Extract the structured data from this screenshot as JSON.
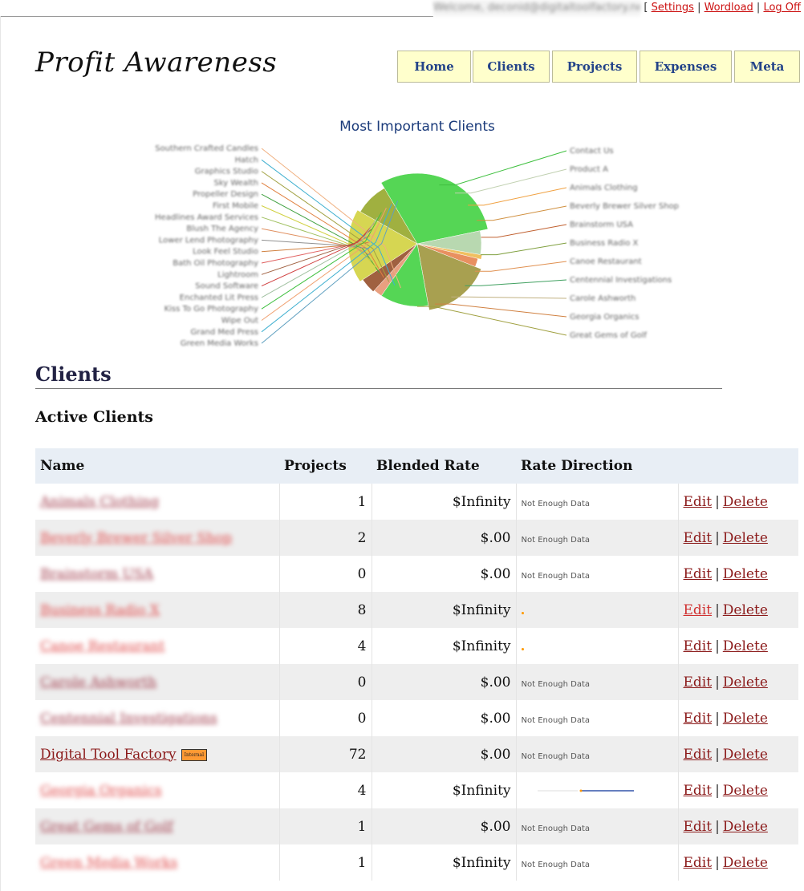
{
  "topbar": {
    "welcome": "Welcome, deconid@digitaltoolfactory.net",
    "open_bracket": "[ ",
    "settings": "Settings",
    "wordload": "Wordload",
    "logoff": "Log Off",
    "sep": " | "
  },
  "logo": "Profit Awareness",
  "nav": [
    {
      "label": "Home"
    },
    {
      "label": "Clients"
    },
    {
      "label": "Projects"
    },
    {
      "label": "Expenses"
    },
    {
      "label": "Meta"
    }
  ],
  "chart_data": {
    "type": "pie",
    "title": "Most Important Clients",
    "slice_colors": [
      "#55d655",
      "#b8d8b0",
      "#f0c060",
      "#e89060",
      "#a8a050",
      "#55d655",
      "#e8a080",
      "#a06040",
      "#d6d652",
      "#a0b040"
    ],
    "left_labels": [
      "Southern Crafted Candles",
      "Hatch",
      "Graphics Studio",
      "Sky Wealth",
      "Propeller Design",
      "First Mobile",
      "Headlines Award Services",
      "Blush The Agency",
      "Lower Lend Photography",
      "Look Feel Studio",
      "Bath Oil Photography",
      "Lightroom",
      "Sound Software",
      "Enchanted Lit Press",
      "Kiss To Go Photography",
      "Wipe Out",
      "Grand Med Press",
      "Green Media Works"
    ],
    "right_labels": [
      "Contact Us",
      "Product A",
      "Animals Clothing",
      "Beverly Brewer Silver Shop",
      "Brainstorm USA",
      "Business Radio X",
      "Canoe Restaurant",
      "Centennial Investigations",
      "Carole Ashworth",
      "Georgia Organics",
      "Great Gems of Golf"
    ]
  },
  "clients": {
    "heading": "Clients",
    "active_heading": "Active Clients",
    "columns": [
      "Name",
      "Projects",
      "Blended Rate",
      "Rate Direction",
      ""
    ],
    "edit_label": "Edit",
    "delete_label": "Delete",
    "action_sep": "|",
    "rows": [
      {
        "name": "Animals Clothing",
        "projects": "1",
        "rate": "$Infinity",
        "direction": "Not Enough Data",
        "dir_type": "text"
      },
      {
        "name": "Beverly Brewer Silver Shop",
        "projects": "2",
        "rate": "$.00",
        "direction": "Not Enough Data",
        "dir_type": "text"
      },
      {
        "name": "Brainstorm USA",
        "projects": "0",
        "rate": "$.00",
        "direction": "Not Enough Data",
        "dir_type": "text"
      },
      {
        "name": "Business Radio X",
        "projects": "8",
        "rate": "$Infinity",
        "direction": "",
        "dir_type": "dot"
      },
      {
        "name": "Canoe Restaurant",
        "projects": "4",
        "rate": "$Infinity",
        "direction": "",
        "dir_type": "dot"
      },
      {
        "name": "Carole Ashworth",
        "projects": "0",
        "rate": "$.00",
        "direction": "Not Enough Data",
        "dir_type": "text"
      },
      {
        "name": "Centennial Investigations",
        "projects": "0",
        "rate": "$.00",
        "direction": "Not Enough Data",
        "dir_type": "text"
      },
      {
        "name": "Digital Tool Factory",
        "projects": "72",
        "rate": "$.00",
        "direction": "Not Enough Data",
        "dir_type": "text",
        "badge": "Internal"
      },
      {
        "name": "Georgia Organics",
        "projects": "4",
        "rate": "$Infinity",
        "direction": "",
        "dir_type": "spark"
      },
      {
        "name": "Great Gems of Golf",
        "projects": "1",
        "rate": "$.00",
        "direction": "Not Enough Data",
        "dir_type": "text"
      },
      {
        "name": "Green Media Works",
        "projects": "1",
        "rate": "$Infinity",
        "direction": "Not Enough Data",
        "dir_type": "text"
      }
    ]
  }
}
